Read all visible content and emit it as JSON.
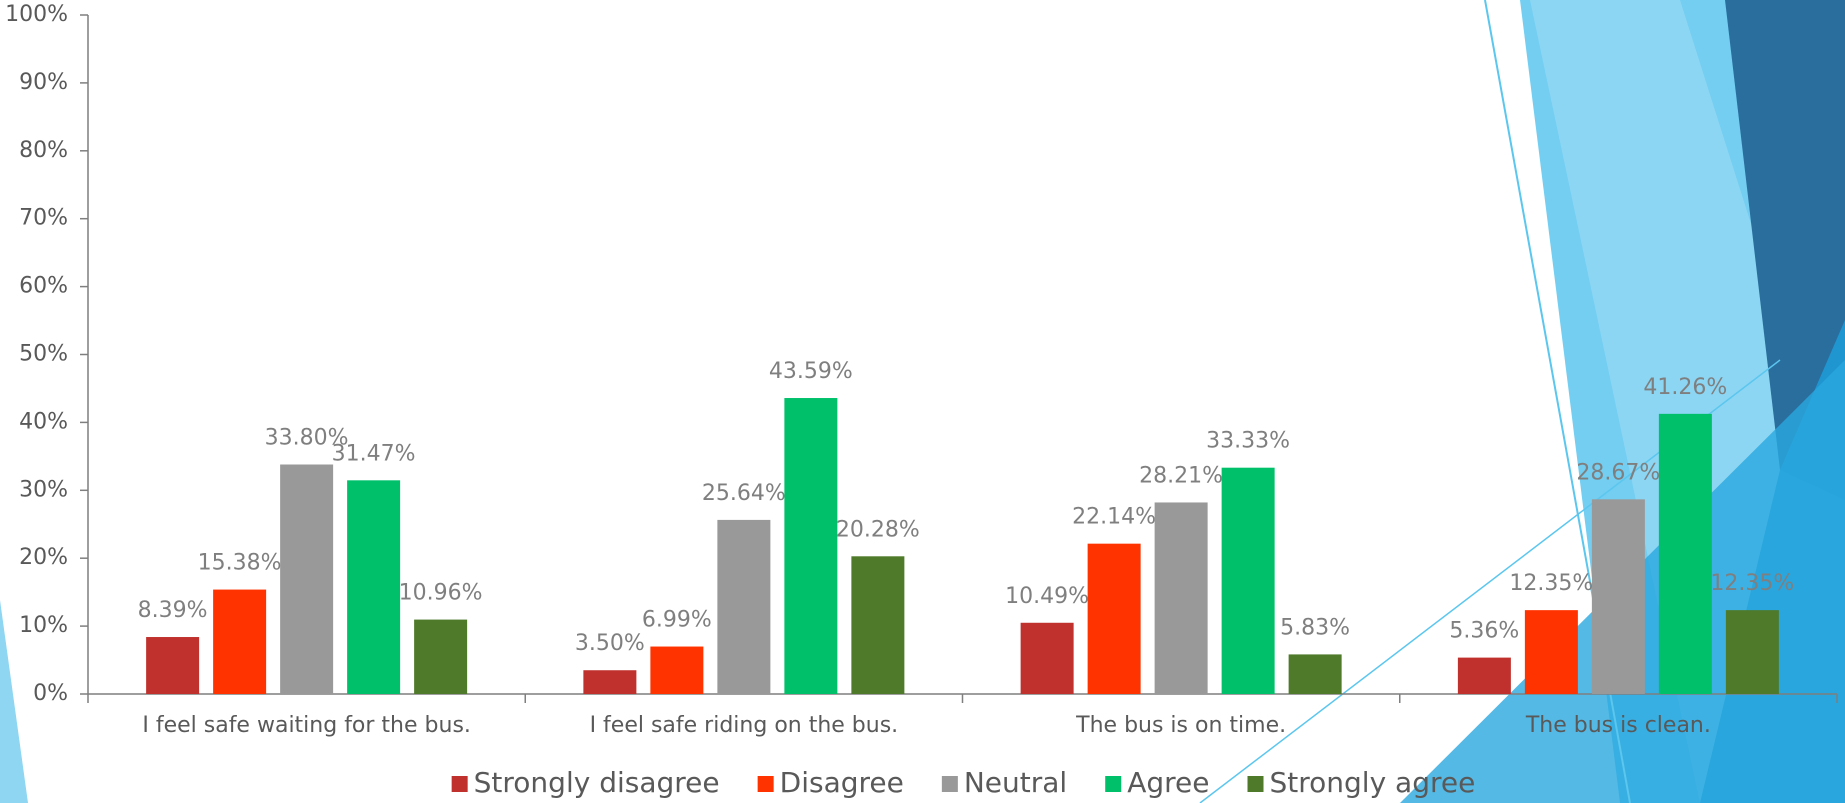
{
  "chart_data": {
    "type": "bar",
    "categories": [
      "I feel safe waiting for the bus.",
      "I feel safe riding on the bus.",
      "The bus is on time.",
      "The bus is clean."
    ],
    "series": [
      {
        "name": "Strongly disagree",
        "color": "#c0302c",
        "values": [
          8.39,
          3.5,
          10.49,
          5.36
        ],
        "value_labels": [
          "8.39%",
          "3.50%",
          "10.49%",
          "5.36%"
        ]
      },
      {
        "name": "Disagree",
        "color": "#ff3300",
        "values": [
          15.38,
          6.99,
          22.14,
          12.35
        ],
        "value_labels": [
          "15.38%",
          "6.99%",
          "22.14%",
          "12.35%"
        ]
      },
      {
        "name": "Neutral",
        "color": "#999999",
        "values": [
          33.8,
          25.64,
          28.21,
          28.67
        ],
        "value_labels": [
          "33.80%",
          "25.64%",
          "28.21%",
          "28.67%"
        ]
      },
      {
        "name": "Agree",
        "color": "#00c06a",
        "values": [
          31.47,
          43.59,
          33.33,
          41.26
        ],
        "value_labels": [
          "31.47%",
          "43.59%",
          "33.33%",
          "41.26%"
        ]
      },
      {
        "name": "Strongly agree",
        "color": "#4e7a2a",
        "values": [
          10.96,
          20.28,
          5.83,
          12.35
        ],
        "value_labels": [
          "10.96%",
          "20.28%",
          "5.83%",
          "12.35%"
        ]
      }
    ],
    "ylim": [
      0,
      100
    ],
    "yticks": [
      {
        "value": 0,
        "label": "0%"
      },
      {
        "value": 10,
        "label": "10%"
      },
      {
        "value": 20,
        "label": "20%"
      },
      {
        "value": 30,
        "label": "30%"
      },
      {
        "value": 40,
        "label": "40%"
      },
      {
        "value": 50,
        "label": "50%"
      },
      {
        "value": 60,
        "label": "60%"
      },
      {
        "value": 70,
        "label": "70%"
      },
      {
        "value": 80,
        "label": "80%"
      },
      {
        "value": 90,
        "label": "90%"
      },
      {
        "value": 100,
        "label": "100%"
      }
    ],
    "legend": "bottom"
  }
}
